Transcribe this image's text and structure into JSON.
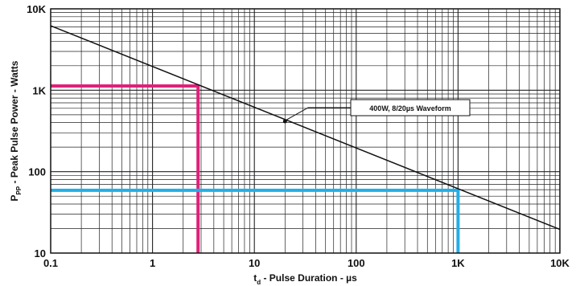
{
  "chart_data": {
    "type": "line",
    "title": "",
    "xlabel": {
      "main": "t",
      "sub": "d",
      "rest": " - Pulse Duration - µs"
    },
    "ylabel": {
      "main": "P",
      "sub": "PP",
      "rest": " - Peak Pulse Power - Watts"
    },
    "xscale": "log",
    "yscale": "log",
    "xlim": [
      0.1,
      10000
    ],
    "ylim": [
      10,
      10000
    ],
    "grid": true,
    "x_ticks": [
      {
        "value": 0.1,
        "label": "0.1"
      },
      {
        "value": 1,
        "label": "1"
      },
      {
        "value": 10,
        "label": "10"
      },
      {
        "value": 100,
        "label": "100"
      },
      {
        "value": 1000,
        "label": "1K"
      },
      {
        "value": 10000,
        "label": "10K"
      }
    ],
    "y_ticks": [
      {
        "value": 10,
        "label": "10"
      },
      {
        "value": 100,
        "label": "100"
      },
      {
        "value": 1000,
        "label": "1K"
      },
      {
        "value": 10000,
        "label": "10K"
      }
    ],
    "series": [
      {
        "x": [
          0.1,
          10000
        ],
        "y": [
          6200,
          19.5
        ],
        "color": "#111111"
      }
    ],
    "highlight_lines": [
      {
        "color": "#e0207a",
        "x": [
          0.1,
          2.8,
          2.8
        ],
        "y": [
          1130,
          1130,
          10
        ]
      },
      {
        "color": "#23aee6",
        "x": [
          0.1,
          1000,
          1000
        ],
        "y": [
          59,
          59,
          10
        ]
      }
    ],
    "annotations": [
      {
        "text": "400W, 8/20µs Waveform",
        "point": {
          "x": 20,
          "y": 415
        }
      }
    ]
  }
}
